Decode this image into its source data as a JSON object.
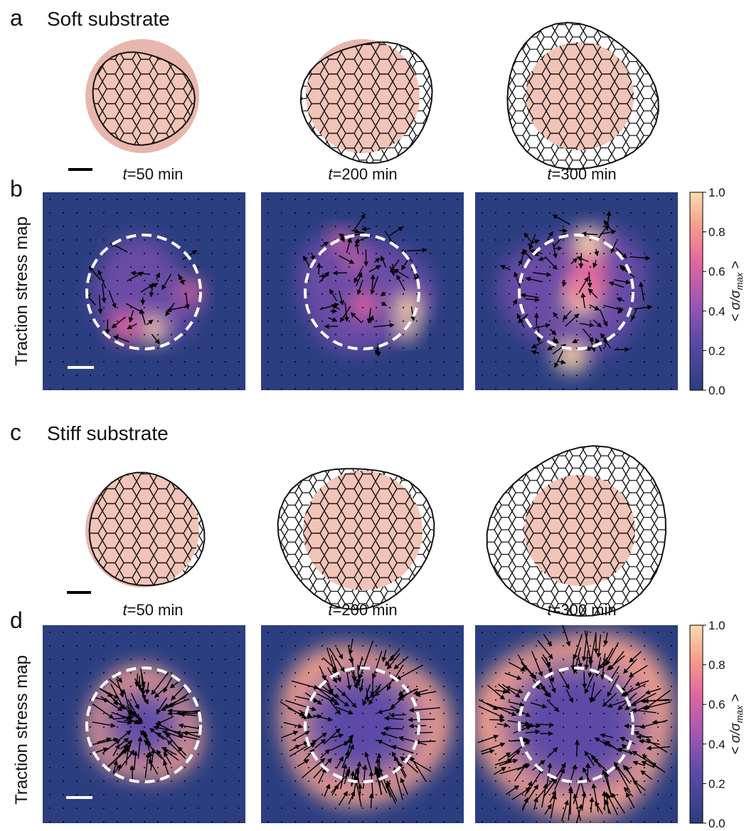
{
  "panel_a": {
    "letter": "a",
    "title": "Soft substrate",
    "times": [
      {
        "var": "t",
        "rest": "=50 min"
      },
      {
        "var": "t",
        "rest": "=200 min"
      },
      {
        "var": "t",
        "rest": "=300 min"
      }
    ]
  },
  "panel_b": {
    "letter": "b",
    "ylabel": "Traction stress map",
    "colorbar": {
      "label_main": "< σ/σ",
      "label_sub": "max",
      "label_end": " >",
      "lim": [
        0,
        1
      ],
      "ticks": [
        {
          "value": 0,
          "label": "0.0"
        },
        {
          "value": 0.2,
          "label": "0.2"
        },
        {
          "value": 0.4,
          "label": "0.4"
        },
        {
          "value": 0.6,
          "label": "0.6"
        },
        {
          "value": 0.8,
          "label": "0.8"
        },
        {
          "value": 1,
          "label": "1.0"
        }
      ]
    }
  },
  "panel_c": {
    "letter": "c",
    "title": "Stiff substrate",
    "times": [
      {
        "var": "t",
        "rest": "=50 min"
      },
      {
        "var": "t",
        "rest": "=200 min"
      },
      {
        "var": "t",
        "rest": "=300 min"
      }
    ]
  },
  "panel_d": {
    "letter": "d",
    "ylabel": "Traction stress map",
    "colorbar": {
      "label_main": "< σ/σ",
      "label_sub": "max",
      "label_end": " >",
      "lim": [
        0,
        1
      ],
      "ticks": [
        {
          "value": 0,
          "label": "0.0"
        },
        {
          "value": 0.2,
          "label": "0.2"
        },
        {
          "value": 0.4,
          "label": "0.4"
        },
        {
          "value": 0.6,
          "label": "0.6"
        },
        {
          "value": 0.8,
          "label": "0.8"
        },
        {
          "value": 1,
          "label": "1.0"
        }
      ]
    }
  }
}
